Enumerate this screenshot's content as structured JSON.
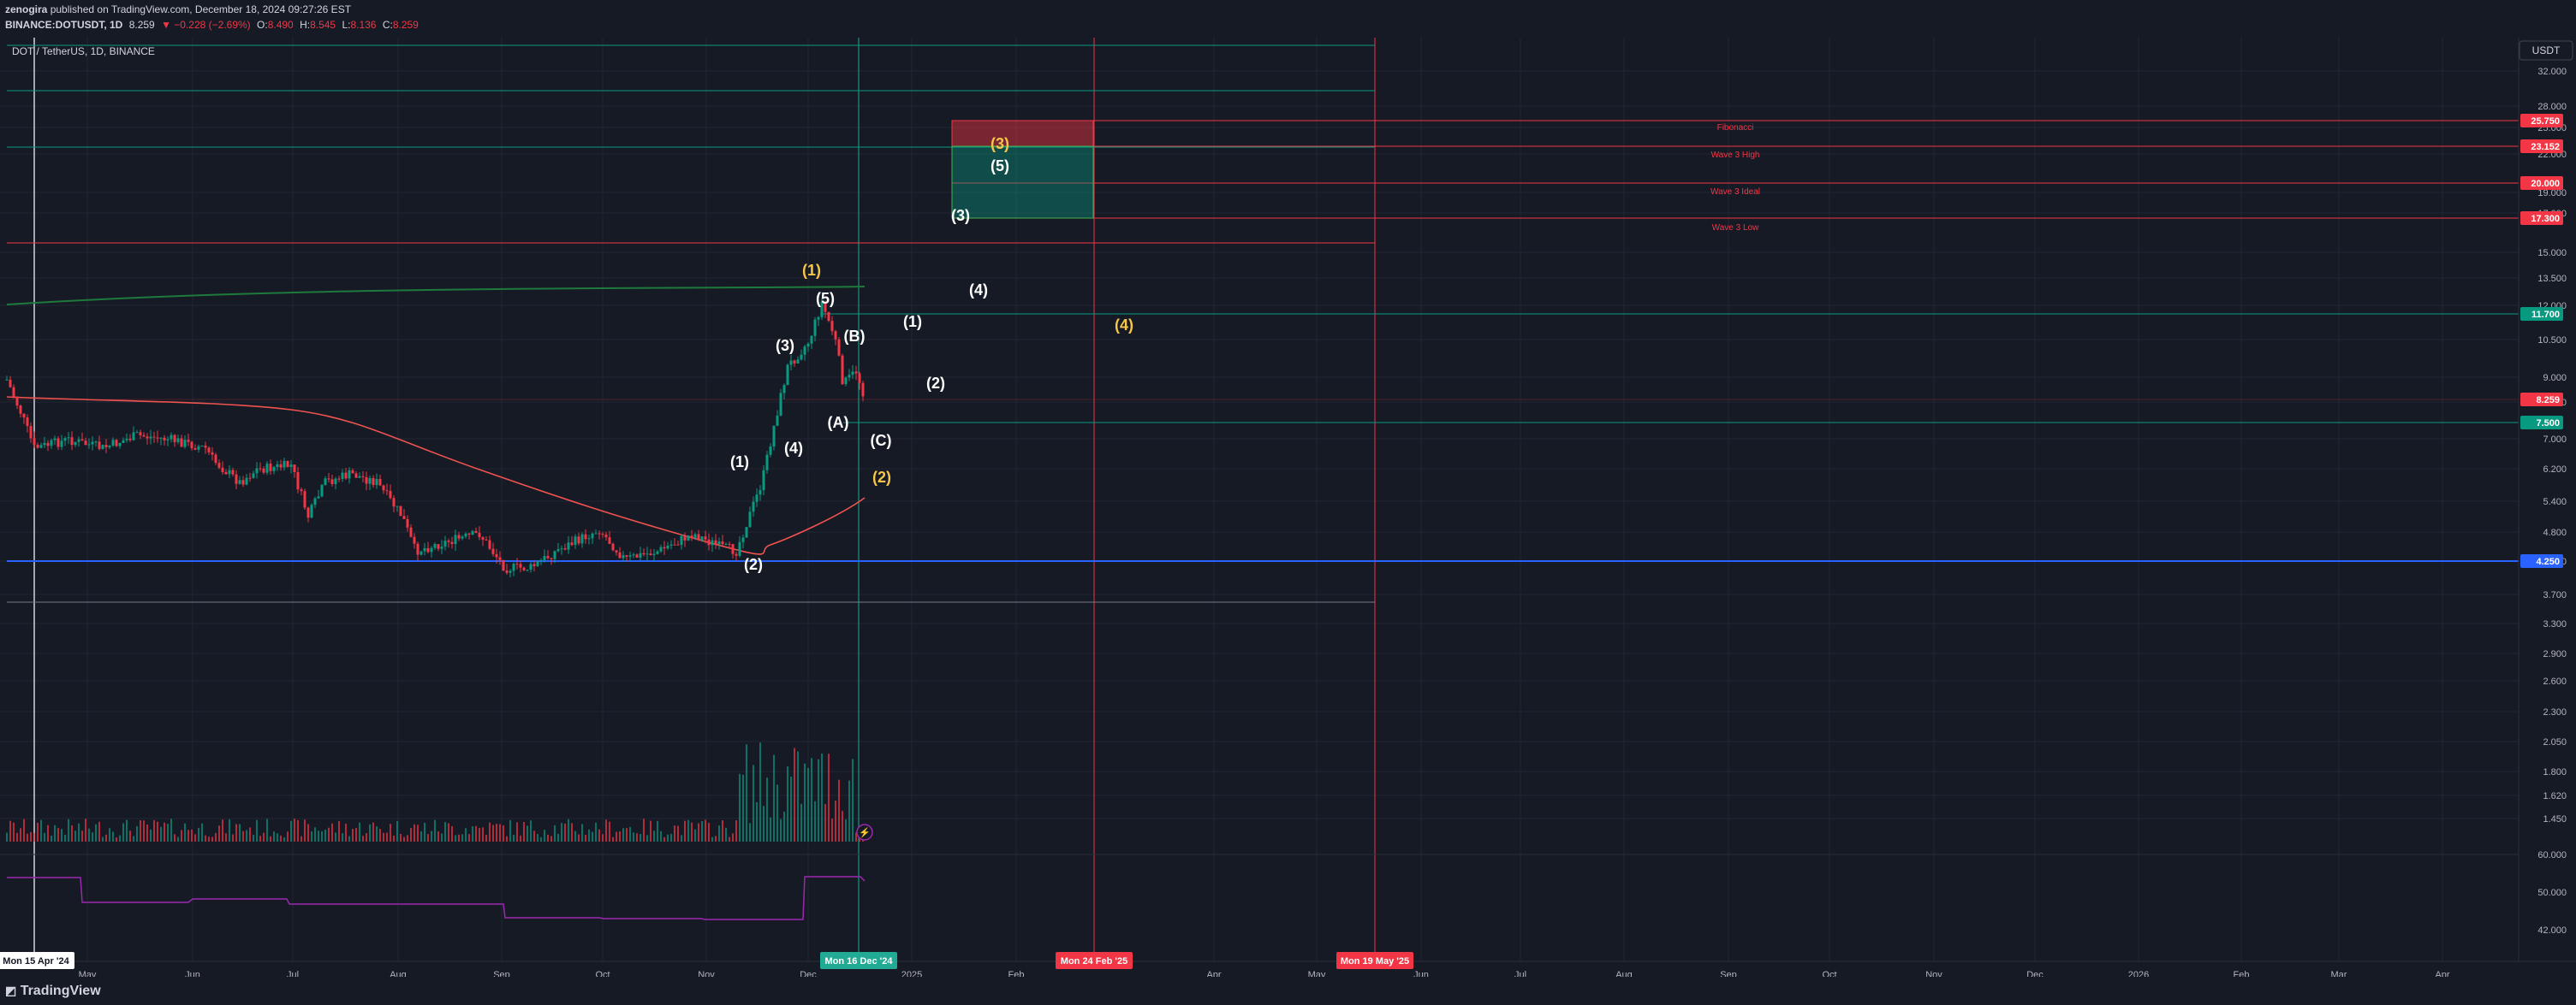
{
  "header": {
    "author": "zenogira",
    "published_text": "published on TradingView.com, December 18, 2024 09:27:26 EST",
    "symbol": "BINANCE:DOTUSDT, 1D",
    "last_price": "8.259",
    "change": "▼ −0.228 (−2.69%)",
    "ohlc": {
      "open_label": "O:",
      "open": "8.490",
      "high_label": "H:",
      "high": "8.545",
      "low_label": "L:",
      "low": "8.136",
      "close_label": "C:",
      "close": "8.259"
    }
  },
  "chart": {
    "legend": "DOT / TetherUS, 1D, BINANCE",
    "currency_button": "USDT",
    "price_axis_ticks": [
      "32.000",
      "28.000",
      "25.000",
      "22.000",
      "19.000",
      "17.000",
      "15.000",
      "13.500",
      "12.000",
      "10.500",
      "9.000",
      "8.000",
      "7.000",
      "6.200",
      "5.400",
      "4.800",
      "4.250",
      "3.700",
      "3.300",
      "2.900",
      "2.600",
      "2.300",
      "2.050",
      "1.800",
      "1.620",
      "1.450"
    ],
    "indicator_axis_ticks": [
      "60.000",
      "50.000",
      "42.000"
    ],
    "price_labels": [
      {
        "text": "25.750",
        "color": "#f23645"
      },
      {
        "text": "23.152",
        "color": "#f23645"
      },
      {
        "text": "20.000",
        "color": "#f23645"
      },
      {
        "text": "17.300",
        "color": "#f23645"
      },
      {
        "text": "11.700",
        "color": "#089981"
      },
      {
        "text": "8.259",
        "color": "#f23645"
      },
      {
        "text": "7.500",
        "color": "#089981"
      },
      {
        "text": "4.250",
        "color": "#2962ff"
      }
    ],
    "fib_labels": [
      "Fibonacci",
      "Wave 3 High",
      "Wave 3 Ideal",
      "Wave 3 Low"
    ],
    "wave_labels_white": [
      "(1)",
      "(2)",
      "(3)",
      "(4)",
      "(5)",
      "(A)",
      "(B)",
      "(C)",
      "(1)",
      "(2)",
      "(3)",
      "(4)",
      "(5)"
    ],
    "wave_labels_yellow": [
      "(1)",
      "(2)",
      "(3)",
      "(4)"
    ],
    "time_axis_ticks": [
      "May",
      "Jun",
      "Jul",
      "Aug",
      "Sep",
      "Oct",
      "Nov",
      "Dec",
      "2025",
      "Feb",
      "Apr",
      "May",
      "Jun",
      "Jul",
      "Aug",
      "Sep",
      "Oct",
      "Nov",
      "Dec",
      "2026",
      "Feb",
      "Mar",
      "Apr"
    ],
    "time_badges": [
      {
        "text": "Mon 15 Apr '24",
        "bg": "#ffffff",
        "fg": "#131722"
      },
      {
        "text": "Mon 16 Dec '24",
        "bg": "#22ab94",
        "fg": "#ffffff"
      },
      {
        "text": "Mon 24 Feb '25",
        "bg": "#f23645",
        "fg": "#ffffff"
      },
      {
        "text": "Mon 19 May '25",
        "bg": "#f23645",
        "fg": "#ffffff"
      }
    ],
    "colors": {
      "up": "#089981",
      "down": "#f23645",
      "ma": "#ef5350",
      "long_ma": "#1e7a3c",
      "rsi": "#9c27b0",
      "hline_blue": "#2962ff",
      "yellow": "#f7c548"
    }
  },
  "footer": {
    "brand": "TradingView"
  }
}
